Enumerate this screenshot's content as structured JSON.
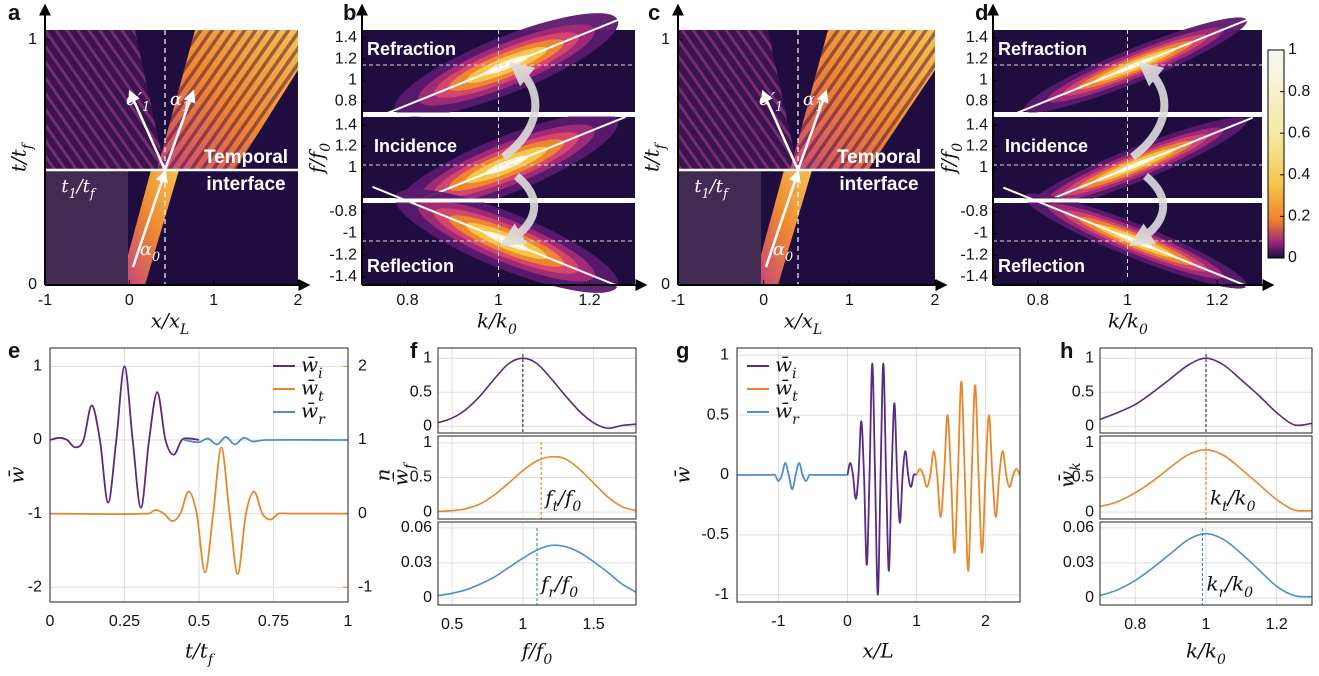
{
  "chart_data": [
    {
      "type": "heatmap",
      "panel": "a",
      "xlabel": "x/x_L",
      "ylabel": "t/t_f",
      "xlim": [
        -1,
        2
      ],
      "xticks": [
        -1,
        0,
        1,
        2
      ],
      "ylim": [
        0,
        1.04
      ],
      "yticks": [
        0,
        1
      ],
      "annotations": [
        "Temporal",
        "interface",
        "t_1/t_f",
        "α_0",
        "α′_1",
        "α_1"
      ]
    },
    {
      "type": "spectrum",
      "panel": "b",
      "xlabel": "k/k_0",
      "ylabel": "f/f_0",
      "xlim": [
        0.7,
        1.3
      ],
      "xticks": [
        0.8,
        1,
        1.2
      ],
      "rows": [
        {
          "label": "Refraction",
          "ylim": [
            0.7,
            1.475
          ],
          "yticks": [
            0.8,
            1,
            1.2,
            1.4
          ]
        },
        {
          "label": "Incidence",
          "ylim": [
            0.72,
            1.475
          ],
          "yticks": [
            1,
            1.2,
            1.4
          ]
        },
        {
          "label": "Reflection",
          "ylim": [
            -1.475,
            -0.72
          ],
          "yticks": [
            -1.4,
            -1.2,
            -1,
            -0.8
          ]
        }
      ]
    },
    {
      "type": "heatmap",
      "panel": "c",
      "xlabel": "x/x_L",
      "ylabel": "t/t_f",
      "xlim": [
        -1,
        2
      ],
      "xticks": [
        -1,
        0,
        1,
        2
      ],
      "ylim": [
        0,
        1.04
      ],
      "yticks": [
        0,
        1
      ],
      "annotations": [
        "Temporal",
        "interface",
        "t_1/t_f",
        "α_0",
        "α′_1",
        "α_1"
      ]
    },
    {
      "type": "spectrum",
      "panel": "d",
      "xlabel": "k/k_0",
      "ylabel": "f/f_0",
      "xlim": [
        0.7,
        1.3
      ],
      "xticks": [
        0.8,
        1,
        1.2
      ],
      "rows": [
        {
          "label": "Refraction",
          "ylim": [
            0.7,
            1.475
          ],
          "yticks": [
            0.8,
            1,
            1.2,
            1.4
          ]
        },
        {
          "label": "Incidence",
          "ylim": [
            0.72,
            1.475
          ],
          "yticks": [
            1,
            1.2,
            1.4
          ]
        },
        {
          "label": "Reflection",
          "ylim": [
            -1.475,
            -0.72
          ],
          "yticks": [
            -1.4,
            -1.2,
            -1,
            -0.8
          ]
        }
      ],
      "colorbar": {
        "lim": [
          0,
          1
        ],
        "ticks": [
          0,
          0.2,
          0.4,
          0.6,
          0.8,
          1
        ]
      }
    },
    {
      "type": "line",
      "panel": "e",
      "xlabel": "t/t_f",
      "ylabel": "w̄",
      "y2label": "n̲",
      "xlim": [
        0,
        1
      ],
      "xticks": [
        0,
        0.25,
        0.5,
        0.75,
        1
      ],
      "ylim": [
        -2.2,
        1.25
      ],
      "yticks": [
        -2,
        -1,
        0,
        1
      ],
      "y2lim": [
        -1.2,
        2.25
      ],
      "y2ticks": [
        -1,
        0,
        1,
        2
      ],
      "y2color": "#e8862a",
      "grid": true,
      "legend": "upper right",
      "series": [
        {
          "name": "w̄_i",
          "color": "#5a2a82",
          "x": [
            0,
            0.03,
            0.0575,
            0.085,
            0.1125,
            0.14,
            0.1675,
            0.195,
            0.2225,
            0.25,
            0.2775,
            0.305,
            0.3325,
            0.36,
            0.3875,
            0.415,
            0.4425,
            0.47,
            0.5
          ],
          "values": [
            0,
            0.03,
            0,
            -0.1,
            0,
            0.47,
            0,
            -0.85,
            0,
            1,
            0,
            -0.92,
            0,
            0.65,
            0,
            -0.2,
            0,
            0.02,
            0
          ]
        },
        {
          "name": "w̄_t",
          "color": "#e8862a",
          "axis": "y2",
          "x": [
            0,
            0.33,
            0.355,
            0.3825,
            0.41,
            0.4375,
            0.465,
            0.4925,
            0.52,
            0.5475,
            0.575,
            0.6025,
            0.63,
            0.6575,
            0.685,
            0.7125,
            0.74,
            0.7675,
            0.8,
            1
          ],
          "values": [
            0,
            0,
            0.05,
            0,
            -0.1,
            0,
            0.3,
            0,
            -0.8,
            0,
            0.9,
            0,
            -0.82,
            0,
            0.3,
            0,
            -0.08,
            0,
            0,
            0
          ]
        },
        {
          "name": "w̄_r",
          "color": "#4b8fcf",
          "x": [
            0.45,
            0.5,
            0.53,
            0.56,
            0.59,
            0.62,
            0.65,
            0.68,
            0.72,
            1
          ],
          "values": [
            0,
            -0.03,
            0.02,
            -0.06,
            0.04,
            -0.06,
            0.03,
            -0.02,
            0,
            0
          ]
        }
      ]
    },
    {
      "type": "stacked",
      "panel": "f",
      "xlabel": "f/f_0",
      "ylabel": "w̄_f",
      "xlim": [
        0.4,
        1.8
      ],
      "xticks": [
        0.5,
        1,
        1.5
      ],
      "grid": true,
      "rows": [
        {
          "color": "#5a2a82",
          "x": [
            0.4,
            0.5,
            0.6,
            0.7,
            0.8,
            0.9,
            1,
            1.1,
            1.2,
            1.3,
            1.4,
            1.5,
            1.6,
            1.7,
            1.8
          ],
          "values": [
            0.05,
            0.12,
            0.25,
            0.45,
            0.7,
            0.92,
            1,
            0.92,
            0.7,
            0.45,
            0.22,
            0.05,
            -0.03,
            0.01,
            0.03
          ],
          "ylim": [
            -0.1,
            1.15
          ],
          "yticks": [
            0,
            0.5,
            1
          ],
          "marker": 1
        },
        {
          "color": "#e8862a",
          "x": [
            0.4,
            0.5,
            0.6,
            0.7,
            0.8,
            0.9,
            1,
            1.1,
            1.2,
            1.3,
            1.4,
            1.5,
            1.6,
            1.7,
            1.8
          ],
          "values": [
            0.01,
            0.02,
            0.05,
            0.12,
            0.25,
            0.42,
            0.6,
            0.74,
            0.8,
            0.77,
            0.62,
            0.42,
            0.22,
            0.08,
            0.02
          ],
          "ylim": [
            -0.1,
            1.1
          ],
          "yticks": [
            0,
            0.5,
            1
          ],
          "marker": 1.13,
          "marker_label": "f_t/f_0"
        },
        {
          "color": "#4b8fcf",
          "x": [
            0.4,
            0.5,
            0.6,
            0.7,
            0.8,
            0.9,
            1,
            1.1,
            1.2,
            1.3,
            1.4,
            1.5,
            1.6,
            1.7,
            1.8
          ],
          "values": [
            0.002,
            0.004,
            0.007,
            0.012,
            0.018,
            0.026,
            0.034,
            0.041,
            0.045,
            0.044,
            0.039,
            0.031,
            0.022,
            0.012,
            0.005
          ],
          "ylim": [
            -0.006,
            0.065
          ],
          "yticks": [
            0,
            0.03,
            0.06
          ],
          "marker": 1.1,
          "marker_label": "f_r/f_0"
        }
      ]
    },
    {
      "type": "line",
      "panel": "g",
      "xlabel": "x/L",
      "ylabel": "w̄",
      "xlim": [
        -1.6,
        2.5
      ],
      "xticks": [
        -1,
        0,
        1,
        2
      ],
      "ylim": [
        -1.06,
        1.06
      ],
      "yticks": [
        -1,
        -0.5,
        0,
        0.5,
        1
      ],
      "grid": true,
      "legend": "upper left",
      "series": [
        {
          "name": "w̄_i",
          "color": "#5a2a82",
          "x": [
            0,
            0.04,
            0.08,
            0.12,
            0.16,
            0.2,
            0.24,
            0.28,
            0.32,
            0.36,
            0.4,
            0.44,
            0.48,
            0.52,
            0.56,
            0.6,
            0.64,
            0.68,
            0.72,
            0.76,
            0.8,
            0.84,
            0.88,
            0.92,
            0.96,
            1
          ],
          "values": [
            0,
            0.1,
            0,
            -0.2,
            0,
            0.45,
            0,
            -0.75,
            0,
            0.93,
            0,
            -1,
            0,
            0.93,
            0,
            -0.8,
            0,
            0.6,
            0,
            -0.4,
            0,
            0.2,
            0,
            -0.1,
            0,
            0
          ]
        },
        {
          "name": "w̄_t",
          "color": "#e8862a",
          "x": [
            1,
            1.05,
            1.1,
            1.15,
            1.2,
            1.25,
            1.3,
            1.35,
            1.4,
            1.45,
            1.5,
            1.55,
            1.6,
            1.65,
            1.7,
            1.75,
            1.8,
            1.85,
            1.9,
            1.95,
            2,
            2.05,
            2.1,
            2.15,
            2.2,
            2.25,
            2.3,
            2.35,
            2.4,
            2.45,
            2.5
          ],
          "values": [
            0,
            0.05,
            0,
            -0.1,
            0,
            0.2,
            0,
            -0.35,
            0,
            0.5,
            0,
            -0.65,
            0,
            0.78,
            0,
            -0.8,
            0,
            0.75,
            0,
            -0.65,
            0,
            0.5,
            0,
            -0.35,
            0,
            0.2,
            0,
            -0.1,
            0,
            0.05,
            0
          ]
        },
        {
          "name": "w̄_r",
          "color": "#4b8fcf",
          "x": [
            -1.6,
            -1.1,
            -1.05,
            -1,
            -0.95,
            -0.9,
            -0.85,
            -0.8,
            -0.75,
            -0.7,
            -0.65,
            -0.6,
            -0.55,
            -0.5,
            0
          ],
          "values": [
            0,
            0,
            0,
            -0.05,
            0,
            0.1,
            0,
            -0.12,
            0,
            0.1,
            0,
            -0.05,
            0,
            0,
            0
          ]
        }
      ]
    },
    {
      "type": "stacked",
      "panel": "h",
      "xlabel": "k/k_0",
      "ylabel": "w̄_k",
      "xlim": [
        0.7,
        1.3
      ],
      "xticks": [
        0.8,
        1,
        1.2
      ],
      "grid": true,
      "rows": [
        {
          "color": "#5a2a82",
          "x": [
            0.7,
            0.75,
            0.8,
            0.85,
            0.9,
            0.95,
            1,
            1.05,
            1.1,
            1.15,
            1.2,
            1.25,
            1.3
          ],
          "values": [
            0.1,
            0.2,
            0.32,
            0.5,
            0.7,
            0.9,
            1,
            0.9,
            0.68,
            0.45,
            0.2,
            0.02,
            0.04
          ],
          "ylim": [
            -0.1,
            1.15
          ],
          "yticks": [
            0,
            0.5,
            1
          ],
          "marker": 1
        },
        {
          "color": "#e8862a",
          "x": [
            0.7,
            0.75,
            0.8,
            0.85,
            0.9,
            0.95,
            1,
            1.05,
            1.1,
            1.15,
            1.2,
            1.25,
            1.3
          ],
          "values": [
            0.08,
            0.15,
            0.28,
            0.45,
            0.65,
            0.83,
            0.9,
            0.82,
            0.62,
            0.4,
            0.18,
            0.03,
            0.02
          ],
          "ylim": [
            -0.1,
            1.1
          ],
          "yticks": [
            0,
            0.5,
            1
          ],
          "marker": 1,
          "marker_label": "k_t/k_0"
        },
        {
          "color": "#4b8fcf",
          "x": [
            0.7,
            0.75,
            0.8,
            0.85,
            0.9,
            0.95,
            1,
            1.05,
            1.1,
            1.15,
            1.2,
            1.25,
            1.3
          ],
          "values": [
            0.002,
            0.007,
            0.015,
            0.026,
            0.038,
            0.05,
            0.055,
            0.05,
            0.038,
            0.024,
            0.01,
            0.002,
            0.001
          ],
          "ylim": [
            -0.006,
            0.065
          ],
          "yticks": [
            0,
            0.03,
            0.06
          ],
          "marker": 0.99,
          "marker_label": "k_r/k_0"
        }
      ]
    }
  ]
}
